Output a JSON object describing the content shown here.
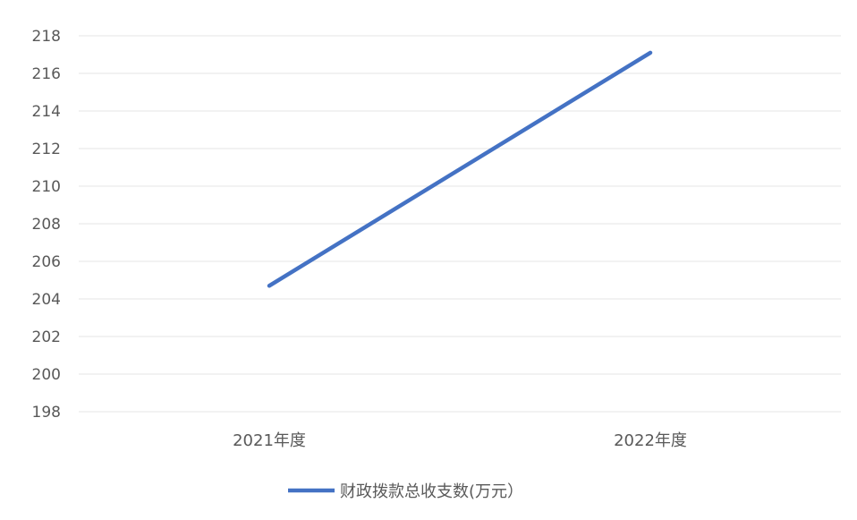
{
  "chart_data": {
    "type": "line",
    "categories": [
      "2021年度",
      "2022年度"
    ],
    "series": [
      {
        "name": "财政拨款总收支数(万元）",
        "values": [
          204.7,
          217.1
        ],
        "color": "#4472c4"
      }
    ],
    "ylim": [
      198,
      218
    ],
    "yticks": [
      198,
      200,
      202,
      204,
      206,
      208,
      210,
      212,
      214,
      216,
      218
    ],
    "grid": true,
    "legend": "bottom",
    "title": "",
    "xlabel": "",
    "ylabel": ""
  }
}
